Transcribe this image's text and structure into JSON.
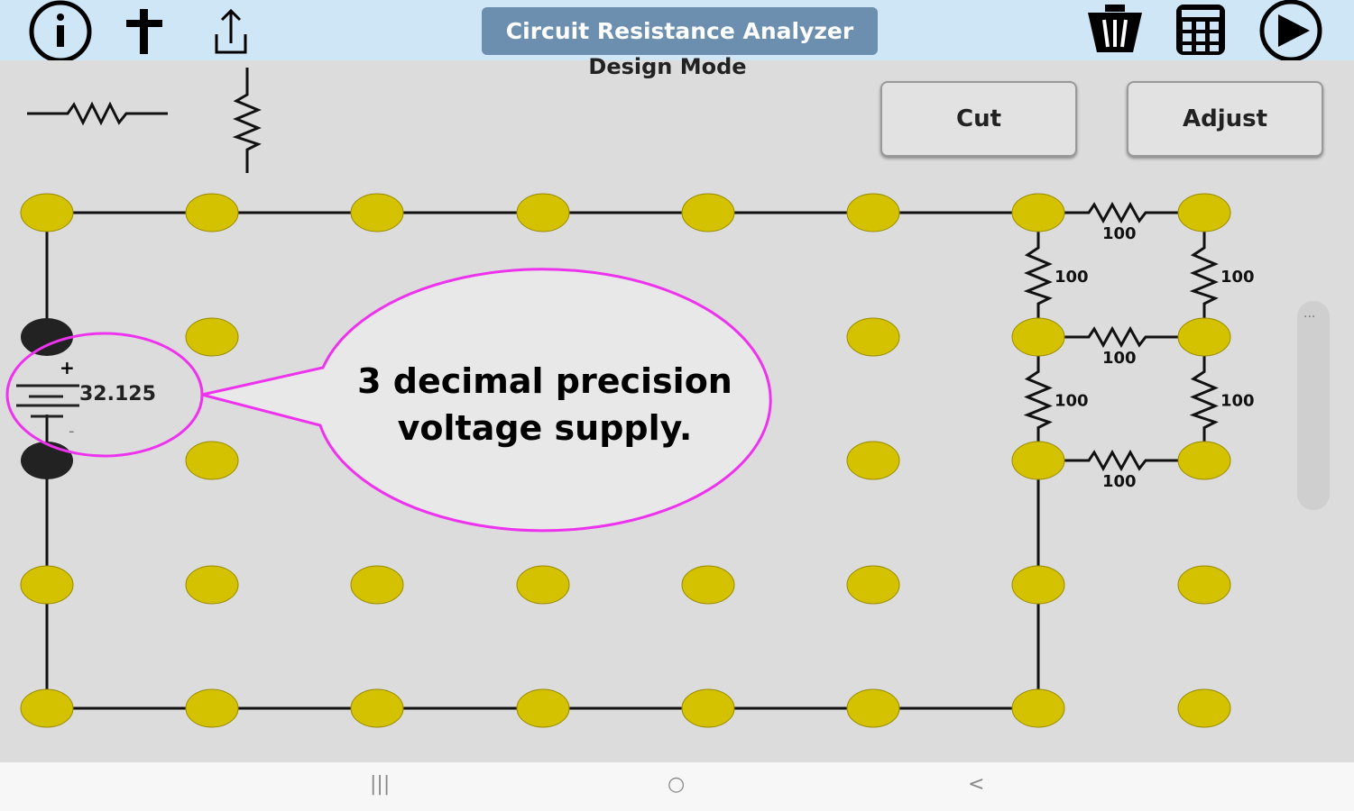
{
  "app": {
    "title": "Circuit Resistance Analyzer",
    "mode": "Design Mode"
  },
  "toolbar": {
    "left_icons": [
      "info-icon",
      "add-icon",
      "share-icon"
    ],
    "right_icons": [
      "trash-icon",
      "calculator-icon",
      "play-icon"
    ]
  },
  "buttons": {
    "cut": "Cut",
    "adjust": "Adjust"
  },
  "palette": [
    "horizontal-resistor",
    "vertical-resistor"
  ],
  "battery": {
    "voltage": "32.125",
    "plus": "+",
    "minus": "-"
  },
  "callout": {
    "line1": "3 decimal precision",
    "line2": "voltage supply."
  },
  "resistors": [
    {
      "id": "r-top",
      "value": "100"
    },
    {
      "id": "r-mid",
      "value": "100"
    },
    {
      "id": "r-bot",
      "value": "100"
    },
    {
      "id": "r-left-upper",
      "value": "100"
    },
    {
      "id": "r-right-upper",
      "value": "100"
    },
    {
      "id": "r-left-lower",
      "value": "100"
    },
    {
      "id": "r-right-lower",
      "value": "100"
    }
  ],
  "colors": {
    "node": "#d4c200",
    "battery_node": "#222222",
    "callout_border": "#ee33ee",
    "topbar": "#cfe6f7",
    "title_bg": "#6c8fb0"
  },
  "navbar": {
    "recent": "|||",
    "home": "○",
    "back": "<"
  }
}
